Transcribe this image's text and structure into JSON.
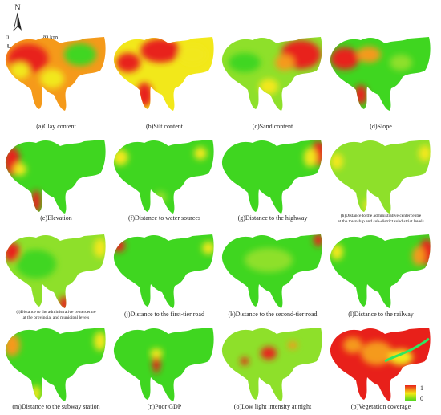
{
  "north": "N",
  "scale_bar": {
    "start": "0",
    "end": "20 km"
  },
  "legend": {
    "high": 1,
    "low": 0
  },
  "panels": [
    {
      "caption": [
        "(a)Clay content"
      ]
    },
    {
      "caption": [
        "(b)Silt content"
      ]
    },
    {
      "caption": [
        "(c)Sand content"
      ]
    },
    {
      "caption": [
        "(d)Slope"
      ]
    },
    {
      "caption": [
        "(e)Elevation"
      ]
    },
    {
      "caption": [
        "(f)Distance to water sources"
      ]
    },
    {
      "caption": [
        "(g)Distance to the highway"
      ]
    },
    {
      "caption": [
        "(h)Distance to the administrative centercentre",
        "at the township and sub-district subdistrict levels"
      ]
    },
    {
      "caption": [
        "(i)Distance to the administrative centercentre",
        "at the provincial and municipal levels"
      ]
    },
    {
      "caption": [
        "(j)Distance to the first-tier road"
      ]
    },
    {
      "caption": [
        "(k)Distance to the second-tier road"
      ]
    },
    {
      "caption": [
        "(l)Distance to the railway"
      ]
    },
    {
      "caption": [
        "(m)Distance to the subway station"
      ]
    },
    {
      "caption": [
        "(n)Poor GDP"
      ]
    },
    {
      "caption": [
        "(o)Low light intensity at night"
      ]
    },
    {
      "caption": [
        "(p)Vegetation coverage"
      ]
    }
  ]
}
